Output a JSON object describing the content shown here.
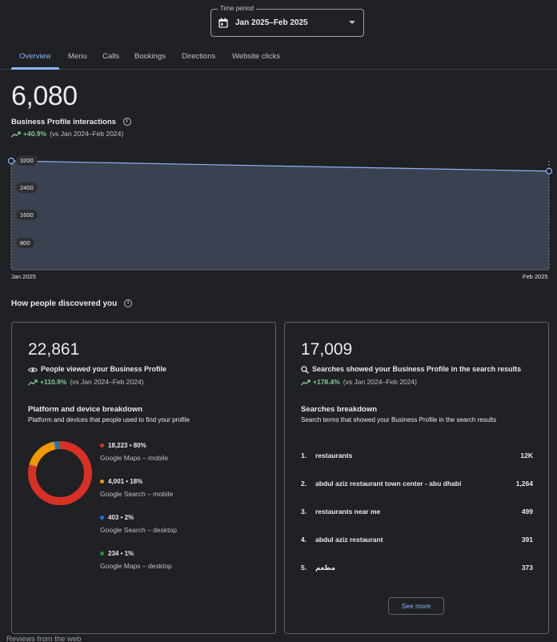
{
  "time_period": {
    "legend": "Time period",
    "value": "Jan 2025–Feb 2025"
  },
  "tabs": [
    {
      "label": "Overview",
      "active": true
    },
    {
      "label": "Menu"
    },
    {
      "label": "Calls"
    },
    {
      "label": "Bookings"
    },
    {
      "label": "Directions"
    },
    {
      "label": "Website clicks"
    }
  ],
  "summary": {
    "total": "6,080",
    "label": "Business Profile interactions",
    "delta_pct": "+40.9%",
    "delta_vs": "(vs Jan 2024–Feb 2024)"
  },
  "chart_data": {
    "type": "area",
    "x": [
      "Jan 2025",
      "Feb 2025"
    ],
    "values": [
      3200,
      2900
    ],
    "y_ticks": [
      "3200",
      "2400",
      "1600",
      "800"
    ],
    "ylim": [
      0,
      3200
    ]
  },
  "discovered": {
    "title": "How people discovered you"
  },
  "profile_views": {
    "total": "22,861",
    "caption": "People viewed your Business Profile",
    "delta_pct": "+110.9%",
    "delta_vs": "(vs Jan 2024–Feb 2024)",
    "breakdown_title": "Platform and device breakdown",
    "breakdown_subtitle": "Platform and devices that people used to find your profile",
    "items": [
      {
        "value": "18,223 • 80%",
        "label": "Google Maps – mobile",
        "color": "#d93025",
        "share": 80
      },
      {
        "value": "4,001 • 18%",
        "label": "Google Search – mobile",
        "color": "#f29900",
        "share": 18
      },
      {
        "value": "403 • 2%",
        "label": "Google Search – desktop",
        "color": "#1a73e8",
        "share": 2
      },
      {
        "value": "234 • 1%",
        "label": "Google Maps – desktop",
        "color": "#1e8e3e",
        "share": 1
      }
    ]
  },
  "searches": {
    "total": "17,009",
    "caption": "Searches showed your Business Profile in the search results",
    "delta_pct": "+178.4%",
    "delta_vs": "(vs Jan 2024–Feb 2024)",
    "breakdown_title": "Searches breakdown",
    "breakdown_subtitle": "Search terms that showed your Business Profile in the search results",
    "rows": [
      {
        "rank": "1.",
        "term": "restaurants",
        "count": "12K"
      },
      {
        "rank": "2.",
        "term": "abdul aziz restaurant town center - abu dhabi",
        "count": "1,264"
      },
      {
        "rank": "3.",
        "term": "restaurants near me",
        "count": "499"
      },
      {
        "rank": "4.",
        "term": "abdul aziz restaurant",
        "count": "391"
      },
      {
        "rank": "5.",
        "term": "مطعم",
        "count": "373"
      }
    ],
    "see_more": "See more"
  },
  "footer": {
    "label": "Reviews from the web"
  }
}
